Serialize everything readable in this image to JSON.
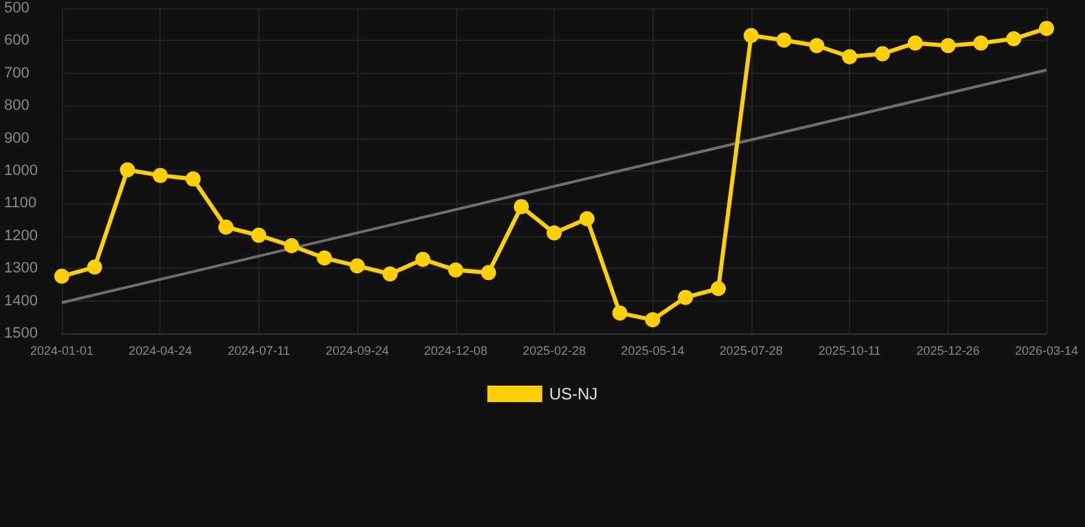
{
  "chart_data": {
    "type": "line",
    "categories": [
      "2024-01-01",
      null,
      null,
      "2024-04-24",
      null,
      null,
      "2024-07-11",
      null,
      null,
      "2024-09-24",
      null,
      null,
      "2024-12-08",
      null,
      null,
      "2025-02-28",
      null,
      null,
      "2025-05-14",
      null,
      null,
      "2025-07-28",
      null,
      null,
      "2025-10-11",
      null,
      null,
      "2025-12-26",
      null,
      null,
      "2026-03-14"
    ],
    "series": [
      {
        "name": "US-NJ",
        "color": "#ffd000",
        "marker": "circle",
        "values": [
          1324,
          1296,
          997,
          1014,
          1025,
          1173,
          1198,
          1230,
          1268,
          1292,
          1317,
          1272,
          1305,
          1313,
          1110,
          1191,
          1147,
          1437,
          1458,
          1389,
          1362,
          584,
          598,
          615,
          649,
          640,
          607,
          615,
          607,
          594,
          562
        ]
      },
      {
        "color": "#6e6e6e",
        "marker": "none",
        "values": [
          1405,
          null,
          null,
          null,
          null,
          null,
          null,
          null,
          null,
          null,
          null,
          null,
          null,
          null,
          null,
          null,
          null,
          null,
          null,
          null,
          null,
          null,
          null,
          null,
          null,
          null,
          null,
          null,
          null,
          null,
          690
        ]
      }
    ],
    "ylim": [
      1500,
      500
    ],
    "yticks": [
      500,
      600,
      700,
      800,
      900,
      1000,
      1100,
      1200,
      1300,
      1400,
      1500
    ],
    "grid": true,
    "legend": "bottom"
  }
}
